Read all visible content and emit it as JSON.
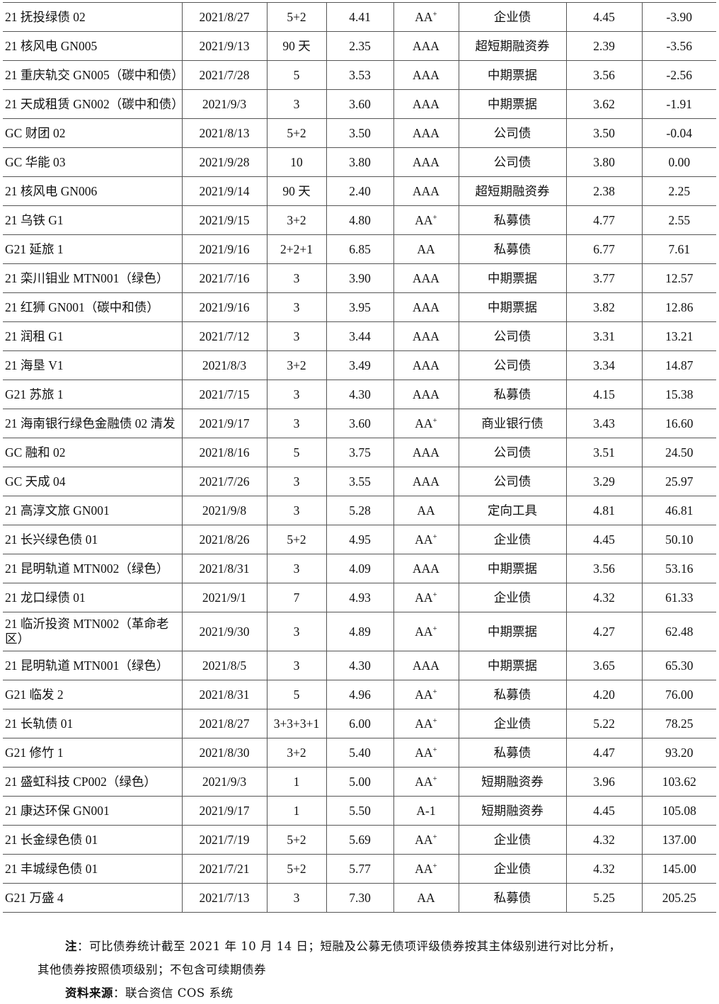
{
  "rows": [
    [
      "21 抚投绿债 02",
      "2021/8/27",
      "5+2",
      "4.41",
      [
        "AA",
        "+"
      ],
      "企业债",
      "4.45",
      "-3.90"
    ],
    [
      "21 核风电 GN005",
      "2021/9/13",
      "90 天",
      "2.35",
      [
        "AAA",
        ""
      ],
      "超短期融资券",
      "2.39",
      "-3.56"
    ],
    [
      "21 重庆轨交 GN005（碳中和债）",
      "2021/7/28",
      "5",
      "3.53",
      [
        "AAA",
        ""
      ],
      "中期票据",
      "3.56",
      "-2.56"
    ],
    [
      "21 天成租赁 GN002（碳中和债）",
      "2021/9/3",
      "3",
      "3.60",
      [
        "AAA",
        ""
      ],
      "中期票据",
      "3.62",
      "-1.91"
    ],
    [
      "GC 财团 02",
      "2021/8/13",
      "5+2",
      "3.50",
      [
        "AAA",
        ""
      ],
      "公司债",
      "3.50",
      "-0.04"
    ],
    [
      "GC 华能 03",
      "2021/9/28",
      "10",
      "3.80",
      [
        "AAA",
        ""
      ],
      "公司债",
      "3.80",
      "0.00"
    ],
    [
      "21 核风电 GN006",
      "2021/9/14",
      "90 天",
      "2.40",
      [
        "AAA",
        ""
      ],
      "超短期融资券",
      "2.38",
      "2.25"
    ],
    [
      "21 乌铁 G1",
      "2021/9/15",
      "3+2",
      "4.80",
      [
        "AA",
        "+"
      ],
      "私募债",
      "4.77",
      "2.55"
    ],
    [
      "G21 延旅 1",
      "2021/9/16",
      "2+2+1",
      "6.85",
      [
        "AA",
        ""
      ],
      "私募债",
      "6.77",
      "7.61"
    ],
    [
      "21 栾川钼业 MTN001（绿色）",
      "2021/7/16",
      "3",
      "3.90",
      [
        "AAA",
        ""
      ],
      "中期票据",
      "3.77",
      "12.57"
    ],
    [
      "21 红狮 GN001（碳中和债）",
      "2021/9/16",
      "3",
      "3.95",
      [
        "AAA",
        ""
      ],
      "中期票据",
      "3.82",
      "12.86"
    ],
    [
      "21 润租 G1",
      "2021/7/12",
      "3",
      "3.44",
      [
        "AAA",
        ""
      ],
      "公司债",
      "3.31",
      "13.21"
    ],
    [
      "21 海垦 V1",
      "2021/8/3",
      "3+2",
      "3.49",
      [
        "AAA",
        ""
      ],
      "公司债",
      "3.34",
      "14.87"
    ],
    [
      "G21 苏旅 1",
      "2021/7/15",
      "3",
      "4.30",
      [
        "AAA",
        ""
      ],
      "私募债",
      "4.15",
      "15.38"
    ],
    [
      "21 海南银行绿色金融债 02 清发",
      "2021/9/17",
      "3",
      "3.60",
      [
        "AA",
        "+"
      ],
      "商业银行债",
      "3.43",
      "16.60"
    ],
    [
      "GC 融和 02",
      "2021/8/16",
      "5",
      "3.75",
      [
        "AAA",
        ""
      ],
      "公司债",
      "3.51",
      "24.50"
    ],
    [
      "GC 天成 04",
      "2021/7/26",
      "3",
      "3.55",
      [
        "AAA",
        ""
      ],
      "公司债",
      "3.29",
      "25.97"
    ],
    [
      "21 高淳文旅 GN001",
      "2021/9/8",
      "3",
      "5.28",
      [
        "AA",
        ""
      ],
      "定向工具",
      "4.81",
      "46.81"
    ],
    [
      "21 长兴绿色债 01",
      "2021/8/26",
      "5+2",
      "4.95",
      [
        "AA",
        "+"
      ],
      "企业债",
      "4.45",
      "50.10"
    ],
    [
      "21 昆明轨道 MTN002（绿色）",
      "2021/8/31",
      "3",
      "4.09",
      [
        "AAA",
        ""
      ],
      "中期票据",
      "3.56",
      "53.16"
    ],
    [
      "21 龙口绿债 01",
      "2021/9/1",
      "7",
      "4.93",
      [
        "AA",
        "+"
      ],
      "企业债",
      "4.32",
      "61.33"
    ],
    [
      "21 临沂投资 MTN002（革命老区）",
      "2021/9/30",
      "3",
      "4.89",
      [
        "AA",
        "+"
      ],
      "中期票据",
      "4.27",
      "62.48"
    ],
    [
      "21 昆明轨道 MTN001（绿色）",
      "2021/8/5",
      "3",
      "4.30",
      [
        "AAA",
        ""
      ],
      "中期票据",
      "3.65",
      "65.30"
    ],
    [
      "G21 临发 2",
      "2021/8/31",
      "5",
      "4.96",
      [
        "AA",
        "+"
      ],
      "私募债",
      "4.20",
      "76.00"
    ],
    [
      "21 长轨债 01",
      "2021/8/27",
      "3+3+3+1",
      "6.00",
      [
        "AA",
        "+"
      ],
      "企业债",
      "5.22",
      "78.25"
    ],
    [
      "G21 修竹 1",
      "2021/8/30",
      "3+2",
      "5.40",
      [
        "AA",
        "+"
      ],
      "私募债",
      "4.47",
      "93.20"
    ],
    [
      "21 盛虹科技 CP002（绿色）",
      "2021/9/3",
      "1",
      "5.00",
      [
        "AA",
        "+"
      ],
      "短期融资券",
      "3.96",
      "103.62"
    ],
    [
      "21 康达环保 GN001",
      "2021/9/17",
      "1",
      "5.50",
      [
        "A-1",
        ""
      ],
      "短期融资券",
      "4.45",
      "105.08"
    ],
    [
      "21 长金绿色债 01",
      "2021/7/19",
      "5+2",
      "5.69",
      [
        "AA",
        "+"
      ],
      "企业债",
      "4.32",
      "137.00"
    ],
    [
      "21 丰城绿色债 01",
      "2021/7/21",
      "5+2",
      "5.77",
      [
        "AA",
        "+"
      ],
      "企业债",
      "4.32",
      "145.00"
    ],
    [
      "G21 万盛 4",
      "2021/7/13",
      "3",
      "7.30",
      [
        "AA",
        ""
      ],
      "私募债",
      "5.25",
      "205.25"
    ]
  ],
  "notes": {
    "note_label": "注",
    "note_text_1": "：可比债券统计截至 2021 年 10 月 14 日；短融及公募无债项评级债券按其主体级别进行对比分析，",
    "note_text_2": "其他债券按照债项级别；不包含可续期债券",
    "source_label": "资料来源",
    "source_text": "：联合资信 COS 系统"
  }
}
